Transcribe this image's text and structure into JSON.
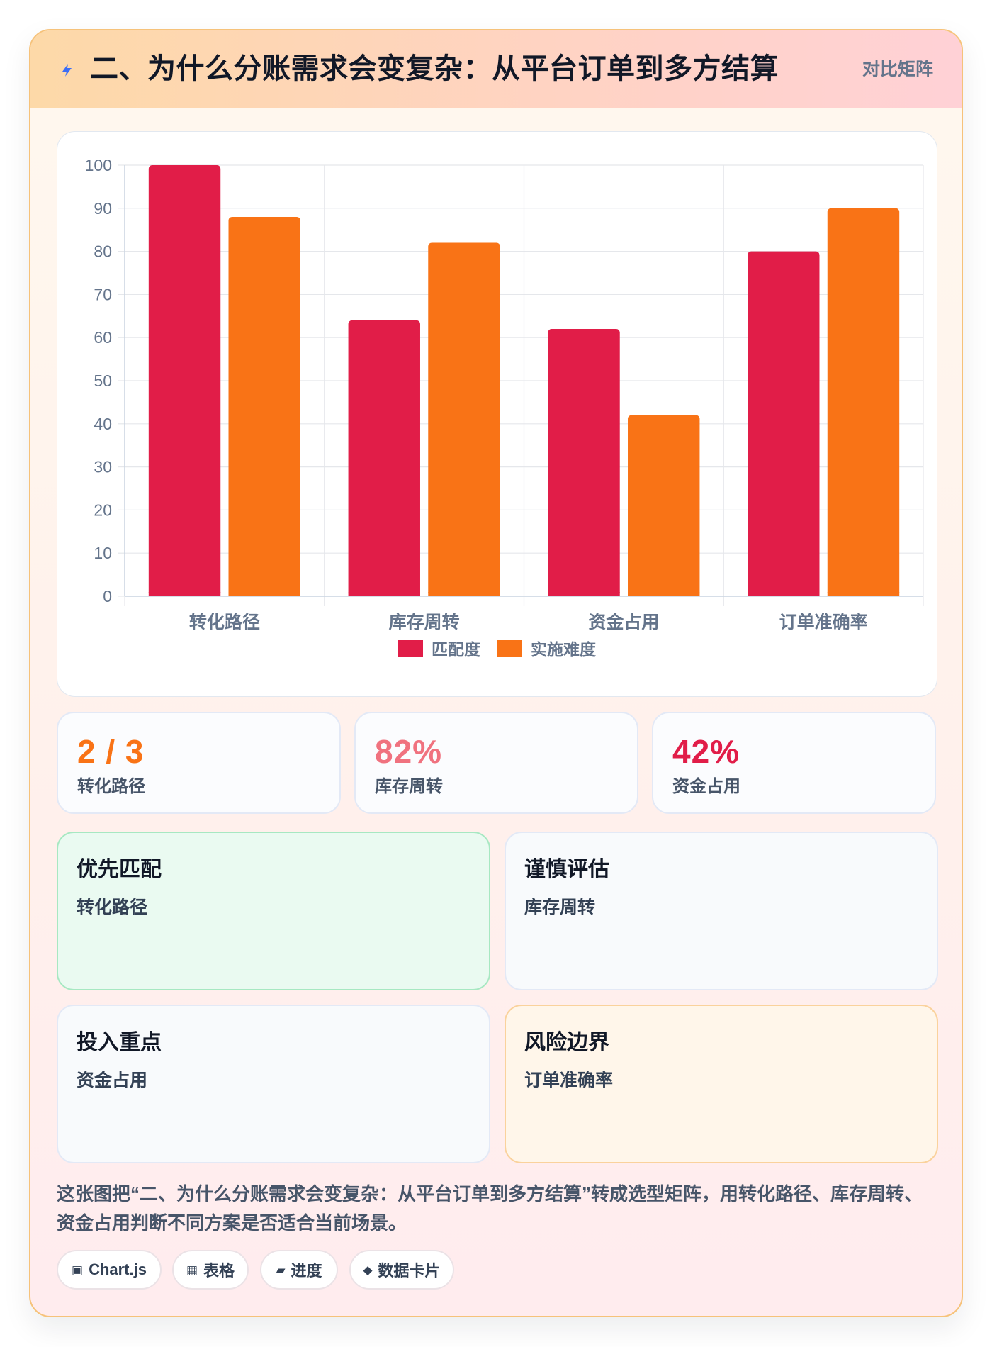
{
  "header": {
    "title": "二、为什么分账需求会变复杂：从平台订单到多方结算",
    "tag": "对比矩阵",
    "icon": "lightning-icon"
  },
  "colors": {
    "series1": "#e11d48",
    "series2": "#f97316",
    "accent_orange": "#f97316",
    "accent_pink": "#f0727f",
    "accent_red": "#e11d48"
  },
  "chart_data": {
    "type": "bar",
    "categories": [
      "转化路径",
      "库存周转",
      "资金占用",
      "订单准确率"
    ],
    "series": [
      {
        "name": "匹配度",
        "values": [
          100,
          64,
          62,
          80
        ]
      },
      {
        "name": "实施难度",
        "values": [
          88,
          82,
          42,
          90
        ]
      }
    ],
    "ylim": [
      0,
      100
    ],
    "yticks": [
      0,
      10,
      20,
      30,
      40,
      50,
      60,
      70,
      80,
      90,
      100
    ],
    "grid": true,
    "legend": "bottom"
  },
  "stats": [
    {
      "value": "2 / 3",
      "label": "转化路径"
    },
    {
      "value": "82%",
      "label": "库存周转"
    },
    {
      "value": "42%",
      "label": "资金占用"
    }
  ],
  "quadrants": [
    {
      "title": "优先匹配",
      "item": "转化路径"
    },
    {
      "title": "谨慎评估",
      "item": "库存周转"
    },
    {
      "title": "投入重点",
      "item": "资金占用"
    },
    {
      "title": "风险边界",
      "item": "订单准确率"
    }
  ],
  "summary": "这张图把“二、为什么分账需求会变复杂：从平台订单到多方结算”转成选型矩阵，用转化路径、库存周转、资金占用判断不同方案是否适合当前场景。",
  "chips": [
    {
      "icon": "▣",
      "label": "Chart.js"
    },
    {
      "icon": "▦",
      "label": "表格"
    },
    {
      "icon": "▰",
      "label": "进度"
    },
    {
      "icon": "◆",
      "label": "数据卡片"
    }
  ]
}
